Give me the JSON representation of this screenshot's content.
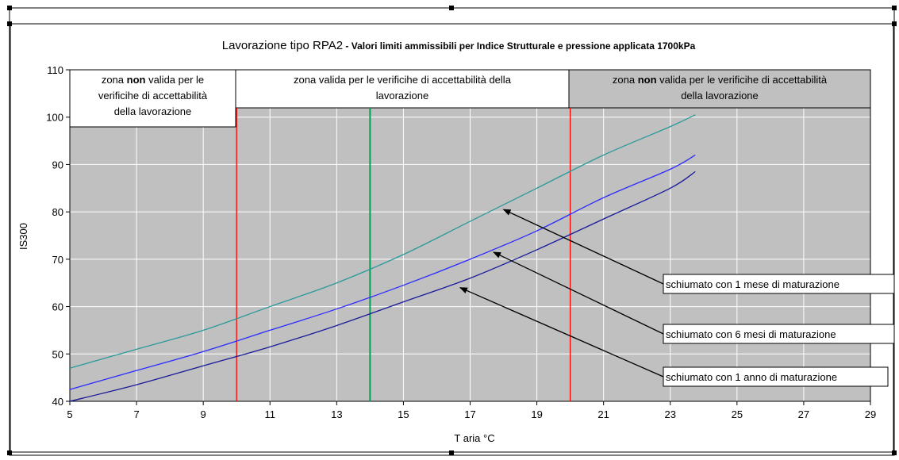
{
  "chart_data": {
    "type": "line",
    "title_main": "Lavorazione tipo RPA2",
    "title_sub": " - Valori limiti ammissibili per Indice Strutturale e pressione applicata 1700kPa",
    "xlabel": "T aria °C",
    "ylabel": "IS300",
    "xlim": [
      5,
      29
    ],
    "ylim": [
      40,
      110
    ],
    "xticks": [
      "5",
      "7",
      "9",
      "11",
      "13",
      "15",
      "17",
      "19",
      "21",
      "23",
      "25",
      "27",
      "29"
    ],
    "yticks": [
      "40",
      "50",
      "60",
      "70",
      "80",
      "90",
      "100",
      "110"
    ],
    "grid": true,
    "series": [
      {
        "color": "#2a9a9a",
        "x": [
          5,
          7,
          9,
          11,
          13,
          15,
          17,
          19,
          21,
          23,
          23.75
        ],
        "y": [
          47,
          51,
          55,
          60,
          65,
          71,
          78,
          85,
          92,
          98,
          100.5
        ]
      },
      {
        "color": "#2b2bff",
        "x": [
          5,
          7,
          9,
          11,
          13,
          15,
          17,
          19,
          21,
          23,
          23.75
        ],
        "y": [
          42.5,
          46.5,
          50.5,
          55,
          59.5,
          64.5,
          70,
          76,
          83,
          89,
          92
        ]
      },
      {
        "color": "#1a1a9a",
        "x": [
          5,
          7,
          9,
          11,
          13,
          15,
          17,
          19,
          21,
          23,
          23.75
        ],
        "y": [
          40,
          43.5,
          47.5,
          51.5,
          56,
          61,
          66,
          72,
          78.5,
          85,
          88.5
        ]
      }
    ],
    "vertical_lines": [
      {
        "x": 10,
        "color": "#ff0000"
      },
      {
        "x": 14,
        "color": "#00a050"
      },
      {
        "x": 20,
        "color": "#ff0000"
      }
    ],
    "zones": [
      {
        "lines": [
          "zona |non| valida per le",
          "verificihe di accettabilità",
          "della lavorazione"
        ]
      },
      {
        "lines": [
          "zona valida per le verificihe di accettabilità della",
          "lavorazione"
        ]
      },
      {
        "lines": [
          "zona |non| valida per le verificihe di accettabilità",
          "della lavorazione"
        ]
      }
    ],
    "annotations": [
      {
        "text": "schiumato con 1 mese di maturazione",
        "arrow_to": [
          18,
          80.5
        ]
      },
      {
        "text": "schiumato con 6 mesi di maturazione",
        "arrow_to": [
          17.7,
          71.5
        ]
      },
      {
        "text": "schiumato con 1 anno di maturazione",
        "arrow_to": [
          16.7,
          64
        ]
      }
    ],
    "colors": {
      "plot_background": "#c0c0c0",
      "grid": "#ffffff",
      "zone_right_background": "#c0c0c0"
    }
  }
}
